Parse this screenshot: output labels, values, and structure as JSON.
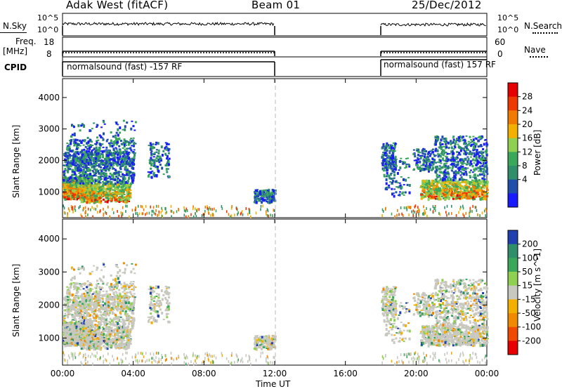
{
  "header": {
    "station": "Adak West (fitACF)",
    "beam": "Beam 01",
    "date": "25/Dec/2012"
  },
  "top_panels": {
    "nsky_label": "N.Sky",
    "nsearch_label": "N.Search",
    "nsky_ticks": [
      "10^5",
      "10^0"
    ],
    "nsearch_ticks": [
      "10^5",
      "10^0"
    ],
    "freq_label": "Freq.",
    "freq_unit": "[MHz]",
    "freq_ticks": [
      "18",
      "8"
    ],
    "nave_label": "Nave",
    "nave_ticks": [
      "60",
      "0"
    ],
    "cpid_label": "CPID",
    "cpid_left": "normalsound (fast) -157 RF",
    "cpid_right": "normalsound (fast) 157 RF"
  },
  "colors": {
    "power_scale": [
      "#1a1aff",
      "#1f4faa",
      "#2f8f6a",
      "#3aa85a",
      "#8fd050",
      "#f4b000",
      "#f07b00",
      "#ee3a00",
      "#e40000"
    ],
    "velocity_scale": [
      "#e80000",
      "#f04a00",
      "#f08a00",
      "#f4b000",
      "#c8c8c0",
      "#8fd050",
      "#3aa85a",
      "#2f8f6a",
      "#2040b0"
    ]
  },
  "chart_data": [
    {
      "type": "heatmap",
      "title": "",
      "xlabel": "Time UT",
      "ylabel": "Slant Range [km]",
      "x_ticks": [
        "00:00",
        "04:00",
        "08:00",
        "12:00",
        "16:00",
        "20:00",
        "00:00"
      ],
      "y_ticks": [
        "1000",
        "2000",
        "3000",
        "4000"
      ],
      "xlim_hours": [
        0,
        24
      ],
      "ylim_km": [
        180,
        4600
      ],
      "colorbar_label": "Power [dB]",
      "colorbar_ticks": [
        "4",
        "8",
        "12",
        "16",
        "20",
        "24",
        "28"
      ],
      "data_gaps_hours": [
        [
          12,
          18
        ]
      ],
      "note_regions": [
        {
          "hours": [
            0,
            4.1
          ],
          "range_km": [
            700,
            2800
          ],
          "level": "strong"
        },
        {
          "hours": [
            4.8,
            6.0
          ],
          "range_km": [
            1500,
            2600
          ],
          "level": "weak"
        },
        {
          "hours": [
            10.8,
            12.0
          ],
          "range_km": [
            700,
            1100
          ],
          "level": "weak"
        },
        {
          "hours": [
            18.0,
            19.5
          ],
          "range_km": [
            900,
            2600
          ],
          "level": "weak"
        },
        {
          "hours": [
            20.2,
            24.0
          ],
          "range_km": [
            700,
            2800
          ],
          "level": "strong"
        }
      ]
    },
    {
      "type": "heatmap",
      "title": "",
      "xlabel": "Time UT",
      "ylabel": "Slant Range [km]",
      "x_ticks": [
        "00:00",
        "04:00",
        "08:00",
        "12:00",
        "16:00",
        "20:00",
        "00:00"
      ],
      "y_ticks": [
        "1000",
        "2000",
        "3000",
        "4000"
      ],
      "xlim_hours": [
        0,
        24
      ],
      "ylim_km": [
        180,
        4600
      ],
      "colorbar_label": "Velocity [m s^-1]",
      "colorbar_ticks": [
        "200",
        "100",
        "50",
        "15",
        "-15",
        "-50",
        "-100",
        "-200"
      ],
      "data_gaps_hours": [
        [
          12,
          18
        ]
      ]
    }
  ]
}
